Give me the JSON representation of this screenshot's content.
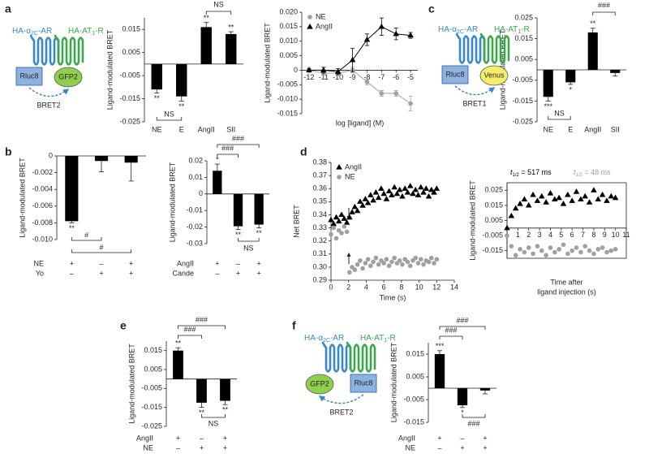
{
  "panels": [
    "a",
    "b",
    "c",
    "d",
    "e",
    "f"
  ],
  "diagrams": [
    {
      "receptor1": [
        "HA-α",
        "2C",
        "-AR"
      ],
      "receptor2": [
        "HA-AT",
        "1",
        "-R"
      ],
      "donor": "Rluc8",
      "acceptor": "GFP2",
      "label": "BRET2"
    },
    {
      "receptor1": [
        "HA-α",
        "2C",
        "-AR"
      ],
      "receptor2": [
        "HA-AT",
        "1",
        "-R"
      ],
      "donor": "Rluc8",
      "acceptor": "Venus",
      "label": "BRET1"
    },
    {
      "receptor1": [
        "HA-α",
        "2C",
        "-AR"
      ],
      "receptor2": [
        "HA-AT",
        "1",
        "-R"
      ],
      "donor": "Rluc8",
      "acceptor": "GFP2",
      "label": "BRET2"
    }
  ],
  "chart_data": [
    {
      "type": "bar",
      "ylabel": "Ligand-modulated BRET",
      "categories": [
        "NE",
        "E",
        "AngII",
        "SII"
      ],
      "values": [
        -0.011,
        -0.014,
        0.016,
        0.013
      ],
      "errors": [
        0.0015,
        0.002,
        0.002,
        0.001
      ],
      "color": "#000000",
      "ylim": [
        -0.025,
        0.02
      ],
      "yticks": [
        -0.025,
        -0.015,
        -0.005,
        0.005,
        0.015
      ],
      "annotations": [
        "**",
        "**",
        "**",
        "**",
        "NS",
        "NS"
      ]
    },
    {
      "type": "line",
      "xlabel": "log [ligand] (M)",
      "ylabel": "Ligand-modulated BRET",
      "x": [
        -12,
        -11,
        -10,
        -9,
        -8,
        -7,
        -6,
        -5
      ],
      "series": [
        {
          "name": "NE",
          "color": "#a0a0a0",
          "marker": "circle",
          "values": [
            0,
            -0.001,
            -0.001,
            0,
            -0.004,
            -0.008,
            -0.008,
            -0.0115
          ],
          "errors": [
            0.001,
            0.002,
            0.001,
            0.001,
            0.001,
            0.001,
            0.001,
            0.0025
          ]
        },
        {
          "name": "AngII",
          "color": "#000000",
          "marker": "triangle",
          "values": [
            0,
            0,
            -0.0005,
            0.0035,
            0.0105,
            0.015,
            0.0125,
            0.012
          ],
          "errors": [
            0.0005,
            0.001,
            0.001,
            0.004,
            0.002,
            0.003,
            0.002,
            0.001
          ]
        }
      ],
      "xlim": [
        -12.5,
        -4.5
      ],
      "xticks": [
        -12,
        -11,
        -10,
        -9,
        -8,
        -7,
        -6,
        -5
      ],
      "ylim": [
        -0.015,
        0.02
      ],
      "yticks": [
        -0.015,
        {
          "value": -0.01,
          "label": "-0.010"
        },
        -0.005,
        0,
        0.005,
        {
          "value": 0.01,
          "label": "0.010"
        },
        0.015,
        {
          "value": 0.02,
          "label": "0.020"
        }
      ],
      "legend": "upper left"
    },
    {
      "type": "bar",
      "ylabel": "Ligand-modulated BRET",
      "categories": [
        "NE",
        "E",
        "AngII",
        "SII"
      ],
      "values": [
        -0.013,
        -0.006,
        0.018,
        -0.0015
      ],
      "errors": [
        0.002,
        0.001,
        0.002,
        0.0015
      ],
      "color": "#000000",
      "ylim": [
        -0.025,
        0.025
      ],
      "yticks": [
        -0.025,
        -0.015,
        -0.005,
        0.005,
        0.015,
        0.025
      ],
      "annotations": [
        "***",
        "*",
        "**",
        "NS",
        "###"
      ]
    },
    {
      "type": "bar",
      "ylabel": "Ligand-modulated BRET",
      "rows": [
        {
          "name": "NE",
          "values": [
            "+",
            "–",
            "+"
          ]
        },
        {
          "name": "Yo",
          "values": [
            "–",
            "+",
            "+"
          ]
        }
      ],
      "values": [
        -0.0078,
        -0.0006,
        -0.0008
      ],
      "errors": [
        0.0002,
        0.0013,
        0.0022
      ],
      "color": "#000000",
      "ylim": [
        -0.01,
        0
      ],
      "yticks": [
        {
          "value": -0.01,
          "label": "-0.010"
        },
        -0.008,
        -0.006,
        -0.004,
        -0.002,
        0
      ],
      "annotations": [
        "**",
        "#",
        "#"
      ]
    },
    {
      "type": "bar",
      "ylabel": "Ligand-modulated BRET",
      "rows": [
        {
          "name": "AngII",
          "values": [
            "+",
            "–",
            "+"
          ]
        },
        {
          "name": "Cande",
          "values": [
            "–",
            "+",
            "+"
          ]
        }
      ],
      "values": [
        0.014,
        -0.0195,
        -0.0185
      ],
      "errors": [
        0.004,
        0.002,
        0.002
      ],
      "color": "#000000",
      "ylim": [
        -0.03,
        0.02
      ],
      "yticks": [
        -0.03,
        -0.02,
        -0.01,
        0,
        0.01,
        0.02
      ],
      "annotations": [
        "*",
        "**",
        "**",
        "NS",
        "###",
        "###"
      ]
    },
    {
      "type": "scatter",
      "xlabel": "Time (s)",
      "ylabel": "Net BRET",
      "x": [
        0,
        0.3,
        0.6,
        0.9,
        1.2,
        1.5,
        1.8,
        2.1,
        2.4,
        2.7,
        3,
        3.3,
        3.6,
        3.9,
        4.2,
        4.5,
        4.8,
        5.1,
        5.4,
        5.7,
        6,
        6.3,
        6.6,
        6.9,
        7.2,
        7.5,
        7.8,
        8.1,
        8.4,
        8.7,
        9,
        9.3,
        9.6,
        9.9,
        10.2,
        10.5,
        10.8,
        11.1,
        11.4,
        11.7,
        12
      ],
      "series": [
        {
          "name": "AngII",
          "color": "#000000",
          "marker": "triangle",
          "values": [
            0.336,
            0.333,
            0.338,
            0.335,
            0.34,
            0.337,
            0.334,
            0.338,
            0.342,
            0.346,
            0.343,
            0.35,
            0.347,
            0.352,
            0.349,
            0.355,
            0.351,
            0.357,
            0.353,
            0.36,
            0.356,
            0.352,
            0.358,
            0.355,
            0.361,
            0.356,
            0.359,
            0.354,
            0.36,
            0.357,
            0.362,
            0.356,
            0.359,
            0.355,
            0.361,
            0.357,
            0.36,
            0.354,
            0.359,
            0.357,
            0.36
          ]
        },
        {
          "name": "NE",
          "color": "#a0a0a0",
          "marker": "circle",
          "values": [
            0.325,
            0.33,
            0.322,
            0.328,
            0.326,
            0.331,
            0.327,
            0.296,
            0.3,
            0.298,
            0.302,
            0.305,
            0.299,
            0.303,
            0.306,
            0.301,
            0.304,
            0.307,
            0.302,
            0.305,
            0.303,
            0.306,
            0.301,
            0.304,
            0.307,
            0.303,
            0.305,
            0.302,
            0.306,
            0.304,
            0.301,
            0.305,
            0.307,
            0.303,
            0.306,
            0.302,
            0.305,
            0.304,
            0.307,
            0.303,
            0.306
          ]
        }
      ],
      "xlim": [
        0,
        14
      ],
      "xticks": [
        0,
        2,
        4,
        6,
        8,
        10,
        12,
        14
      ],
      "ylim": [
        0.29,
        0.38
      ],
      "yticks": [
        0.29,
        {
          "value": 0.3,
          "label": "0.30"
        },
        0.31,
        0.32,
        0.33,
        0.34,
        0.35,
        0.36,
        0.37,
        0.38
      ],
      "legend": "upper left"
    },
    {
      "type": "scatter",
      "xlabel": [
        "Time after",
        "ligand injection (s)"
      ],
      "ylabel": "Ligand-modulated BRET",
      "x": [
        0,
        0.4,
        0.8,
        1.2,
        1.6,
        2,
        2.4,
        2.8,
        3.2,
        3.6,
        4,
        4.4,
        4.8,
        5.2,
        5.6,
        6,
        6.4,
        6.8,
        7.2,
        7.6,
        8,
        8.4,
        8.8,
        9.2,
        9.6,
        10
      ],
      "series": [
        {
          "name": "AngII",
          "color": "#000000",
          "marker": "triangle",
          "values": [
            0,
            0.008,
            0.013,
            0.016,
            0.019,
            0.015,
            0.022,
            0.018,
            0.021,
            0.017,
            0.023,
            0.019,
            0.02,
            0.016,
            0.022,
            0.018,
            0.024,
            0.019,
            0.021,
            0.017,
            0.025,
            0.019,
            0.022,
            0.018,
            0.021,
            0.02
          ]
        },
        {
          "name": "NE",
          "color": "#a0a0a0",
          "marker": "circle",
          "values": [
            -0.005,
            -0.012,
            -0.018,
            -0.014,
            -0.016,
            -0.013,
            -0.017,
            -0.012,
            -0.015,
            -0.018,
            -0.013,
            -0.016,
            -0.014,
            -0.011,
            -0.017,
            -0.015,
            -0.013,
            -0.016,
            -0.012,
            -0.015,
            -0.017,
            -0.014,
            -0.013,
            -0.016,
            -0.015,
            -0.014
          ]
        }
      ],
      "xlim": [
        0,
        11
      ],
      "xticks": [
        1,
        2,
        3,
        4,
        5,
        6,
        7,
        8,
        9,
        10,
        11
      ],
      "ylim": [
        -0.02,
        0.03
      ],
      "yticks": [
        -0.015,
        -0.005,
        0.005,
        0.015,
        0.025
      ],
      "annotations": [
        [
          "t",
          "1/2",
          " = 517 ms"
        ],
        [
          "t",
          "1/2",
          " = 48 ms"
        ]
      ]
    },
    {
      "type": "bar",
      "ylabel": "Ligand-modulated BRET",
      "rows": [
        {
          "name": "AngII",
          "values": [
            "+",
            "–",
            "+"
          ]
        },
        {
          "name": "NE",
          "values": [
            "–",
            "+",
            "+"
          ]
        }
      ],
      "values": [
        0.015,
        -0.0125,
        -0.0115
      ],
      "errors": [
        0.0015,
        0.0025,
        0.002
      ],
      "color": "#000000",
      "ylim": [
        -0.025,
        0.02
      ],
      "yticks": [
        -0.025,
        -0.015,
        -0.005,
        0.005,
        0.015
      ],
      "annotations": [
        "**",
        "**",
        "**",
        "###",
        "###",
        "NS"
      ]
    },
    {
      "type": "bar",
      "ylabel": "Ligand-modulated BRET",
      "rows": [
        {
          "name": "AngII",
          "values": [
            "+",
            "–",
            "+"
          ]
        },
        {
          "name": "NE",
          "values": [
            "–",
            "+",
            "+"
          ]
        }
      ],
      "values": [
        0.015,
        -0.0075,
        -0.001
      ],
      "errors": [
        0.0015,
        0.001,
        0.0015
      ],
      "color": "#000000",
      "ylim": [
        -0.015,
        0.02
      ],
      "yticks": [
        -0.015,
        -0.005,
        0.005,
        0.015
      ],
      "annotations": [
        "***",
        "*",
        "###",
        "###",
        "###"
      ]
    }
  ]
}
